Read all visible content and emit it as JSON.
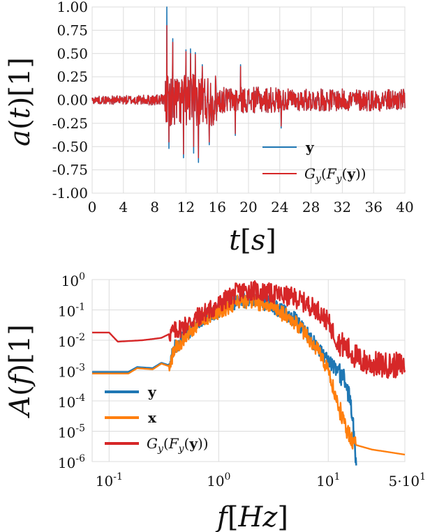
{
  "chart_data": [
    {
      "id": "time_history",
      "type": "line",
      "xlabel": "t[s]",
      "ylabel": "a(t)[1]",
      "xlim": [
        0,
        40
      ],
      "ylim": [
        -1.0,
        1.0
      ],
      "xticks": [
        0,
        4,
        8,
        12,
        16,
        20,
        24,
        28,
        32,
        36,
        40
      ],
      "xtick_labels": [
        "0",
        "4",
        "8",
        "12",
        "16",
        "20",
        "24",
        "28",
        "32",
        "36",
        "40"
      ],
      "yticks": [
        1.0,
        0.75,
        0.5,
        0.25,
        0.0,
        -0.25,
        -0.5,
        -0.75,
        -1.0
      ],
      "ytick_labels": [
        "1.00",
        "0.75",
        "0.50",
        "0.25",
        "0.00",
        "-0.25",
        "-0.50",
        "-0.75",
        "-1.00"
      ],
      "grid": true,
      "legend_position": "lower-right",
      "series": [
        {
          "name": "y",
          "color": "#1f77b4",
          "peaks": [
            [
              9.55,
              1.0
            ],
            [
              9.8,
              -0.52
            ],
            [
              10.3,
              0.66
            ],
            [
              11.7,
              -0.62
            ],
            [
              12.0,
              0.54
            ],
            [
              12.6,
              0.55
            ],
            [
              13.0,
              -0.57
            ],
            [
              13.2,
              0.51
            ],
            [
              13.6,
              -0.67
            ],
            [
              14.1,
              0.38
            ],
            [
              15.0,
              -0.48
            ],
            [
              18.3,
              -0.38
            ],
            [
              19.0,
              0.38
            ],
            [
              24.2,
              -0.3
            ]
          ]
        },
        {
          "name": "G_y(F_y(y))",
          "color": "#d62728",
          "peaks": [
            [
              9.55,
              0.8
            ],
            [
              9.8,
              -0.45
            ],
            [
              10.3,
              0.62
            ],
            [
              11.7,
              -0.58
            ],
            [
              12.0,
              0.52
            ],
            [
              12.6,
              0.5
            ],
            [
              13.0,
              -0.5
            ],
            [
              13.2,
              0.49
            ],
            [
              13.6,
              -0.62
            ],
            [
              14.1,
              0.36
            ],
            [
              15.0,
              -0.45
            ],
            [
              18.3,
              -0.36
            ],
            [
              19.0,
              0.36
            ],
            [
              24.2,
              -0.28
            ]
          ]
        }
      ]
    },
    {
      "id": "spectrum",
      "type": "line",
      "xscale": "log",
      "yscale": "log",
      "xlabel": "f[Hz]",
      "ylabel": "A(f)[1]",
      "xlim": [
        0.07,
        50
      ],
      "ylim": [
        1e-06,
        1
      ],
      "xticks": [
        0.1,
        1,
        10,
        50
      ],
      "xtick_labels": [
        [
          "10",
          "-1"
        ],
        [
          "10",
          "0"
        ],
        [
          "10",
          "1"
        ],
        [
          "5·10",
          "1"
        ]
      ],
      "yticks": [
        1,
        0.1,
        0.01,
        0.001,
        0.0001,
        1e-05,
        1e-06
      ],
      "ytick_labels": [
        [
          "10",
          "0"
        ],
        [
          "10",
          "-1"
        ],
        [
          "10",
          "-2"
        ],
        [
          "10",
          "-3"
        ],
        [
          "10",
          "-4"
        ],
        [
          "10",
          "-5"
        ],
        [
          "10",
          "-6"
        ]
      ],
      "grid": true,
      "legend_position": "lower-left",
      "series": [
        {
          "name": "y",
          "color": "#1f77b4",
          "points": [
            [
              0.07,
              0.0009
            ],
            [
              0.15,
              0.0009
            ],
            [
              0.18,
              0.0013
            ],
            [
              0.25,
              0.0012
            ],
            [
              0.3,
              0.0018
            ],
            [
              0.35,
              0.0015
            ],
            [
              0.4,
              0.006
            ],
            [
              0.55,
              0.02
            ],
            [
              0.7,
              0.05
            ],
            [
              1.0,
              0.1
            ],
            [
              1.5,
              0.2
            ],
            [
              2.0,
              0.22
            ],
            [
              3.0,
              0.15
            ],
            [
              5.0,
              0.05
            ],
            [
              8.0,
              0.006
            ],
            [
              11.0,
              0.0015
            ],
            [
              14.0,
              0.0005
            ],
            [
              16.0,
              0.0001
            ],
            [
              17.0,
              1e-05
            ],
            [
              18.0,
              1e-06
            ]
          ]
        },
        {
          "name": "x",
          "color": "#ff7f0e",
          "points": [
            [
              0.07,
              0.0008
            ],
            [
              0.15,
              0.0008
            ],
            [
              0.18,
              0.0012
            ],
            [
              0.25,
              0.0011
            ],
            [
              0.3,
              0.0017
            ],
            [
              0.35,
              0.0014
            ],
            [
              0.4,
              0.0055
            ],
            [
              0.55,
              0.018
            ],
            [
              0.7,
              0.045
            ],
            [
              1.0,
              0.09
            ],
            [
              1.5,
              0.18
            ],
            [
              2.0,
              0.2
            ],
            [
              3.0,
              0.13
            ],
            [
              5.0,
              0.04
            ],
            [
              8.0,
              0.005
            ],
            [
              10.0,
              0.001
            ],
            [
              12.0,
              0.0001
            ],
            [
              15.0,
              1e-05
            ],
            [
              18.0,
              3.5e-06
            ],
            [
              25.0,
              2.5e-06
            ],
            [
              50.0,
              1.7e-06
            ]
          ]
        },
        {
          "name": "G_y(F_y(y))",
          "color": "#d62728",
          "points": [
            [
              0.07,
              0.018
            ],
            [
              0.1,
              0.018
            ],
            [
              0.12,
              0.009
            ],
            [
              0.2,
              0.01
            ],
            [
              0.25,
              0.011
            ],
            [
              0.3,
              0.012
            ],
            [
              0.4,
              0.02
            ],
            [
              0.55,
              0.04
            ],
            [
              0.7,
              0.07
            ],
            [
              1.0,
              0.15
            ],
            [
              1.5,
              0.4
            ],
            [
              2.0,
              0.45
            ],
            [
              3.0,
              0.35
            ],
            [
              5.0,
              0.25
            ],
            [
              8.0,
              0.1
            ],
            [
              10.0,
              0.04
            ],
            [
              12.0,
              0.01
            ],
            [
              15.0,
              0.005
            ],
            [
              20.0,
              0.002
            ],
            [
              30.0,
              0.0015
            ],
            [
              50.0,
              0.0015
            ]
          ]
        }
      ]
    }
  ]
}
